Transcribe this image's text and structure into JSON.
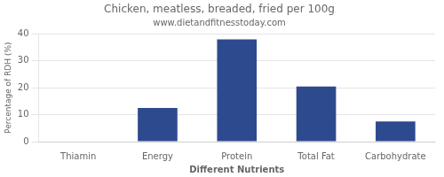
{
  "chart_data": {
    "type": "bar",
    "title": "Chicken, meatless, breaded, fried per 100g",
    "subtitle": "www.dietandfitnesstoday.com",
    "categories": [
      "Thiamin",
      "Energy",
      "Protein",
      "Total Fat",
      "Carbohydrate"
    ],
    "values": [
      0,
      12.5,
      38,
      20.5,
      7.5
    ],
    "color": "#2e4a8e",
    "xlabel": "Different Nutrients",
    "ylabel": "Percentage of RDH (%)",
    "ylim": [
      0,
      40
    ],
    "yticks": [
      0,
      10,
      20,
      30,
      40
    ],
    "grid": true
  }
}
